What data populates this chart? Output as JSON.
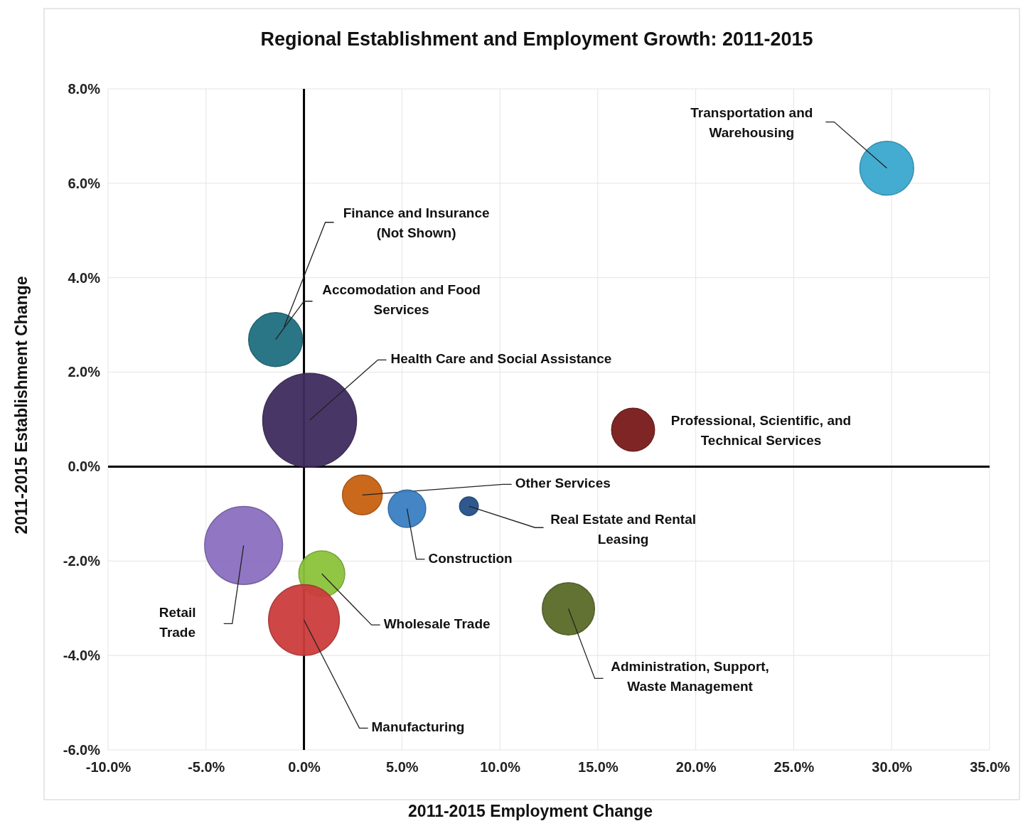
{
  "chart_data": {
    "type": "bubble",
    "title": "Regional Establishment and Employment Growth:  2011-2015",
    "xlabel": "2011-2015 Employment Change",
    "ylabel": "2011-2015 Establishment Change",
    "xlim": [
      -10,
      35
    ],
    "xticks": [
      {
        "value": -10,
        "label": "-10.0%"
      },
      {
        "value": -5,
        "label": "-5.0%"
      },
      {
        "value": 0,
        "label": "0.0%"
      },
      {
        "value": 5,
        "label": "5.0%"
      },
      {
        "value": 10,
        "label": "10.0%"
      },
      {
        "value": 15,
        "label": "15.0%"
      },
      {
        "value": 20,
        "label": "20.0%"
      },
      {
        "value": 25,
        "label": "25.0%"
      },
      {
        "value": 30,
        "label": "30.0%"
      },
      {
        "value": 35,
        "label": "35.0%"
      }
    ],
    "ylim": [
      -6,
      8
    ],
    "yticks": [
      {
        "value": -6,
        "label": "-6.0%"
      },
      {
        "value": -4,
        "label": "-4.0%"
      },
      {
        "value": -2,
        "label": "-2.0%"
      },
      {
        "value": 0,
        "label": "0.0%"
      },
      {
        "value": 2,
        "label": "2.0%"
      },
      {
        "value": 4,
        "label": "4.0%"
      },
      {
        "value": 6,
        "label": "6.0%"
      },
      {
        "value": 8,
        "label": "8.0%"
      }
    ],
    "grid": true,
    "annotations": [
      "Finance and Insurance (Not Shown)"
    ],
    "series": [
      {
        "name": "Transportation and Warehousing",
        "color": "#3aa8cf",
        "x": [
          29.75
        ],
        "values": [
          6.32
        ],
        "sizes": [
          0.33
        ]
      },
      {
        "name": "Accomodation and Food Services",
        "color": "#1f6f80",
        "x": [
          -1.45
        ],
        "values": [
          2.69
        ],
        "sizes": [
          0.33
        ]
      },
      {
        "name": "Health Care and Social Assistance",
        "color": "#3f2d5e",
        "x": [
          0.29
        ],
        "values": [
          0.98
        ],
        "sizes": [
          1
        ]
      },
      {
        "name": "Professional, Scientific, and Technical Services",
        "color": "#7a1a1a",
        "x": [
          16.8
        ],
        "values": [
          0.78
        ],
        "sizes": [
          0.21
        ]
      },
      {
        "name": "Other Services",
        "color": "#c8610f",
        "x": [
          2.98
        ],
        "values": [
          -0.6
        ],
        "sizes": [
          0.18
        ]
      },
      {
        "name": "Construction",
        "color": "#3a7fc4",
        "x": [
          5.26
        ],
        "values": [
          -0.89
        ],
        "sizes": [
          0.16
        ]
      },
      {
        "name": "Real Estate and Rental Leasing",
        "color": "#24508a",
        "x": [
          8.42
        ],
        "values": [
          -0.84
        ],
        "sizes": [
          0.04
        ]
      },
      {
        "name": "Retail Trade",
        "color": "#8b6fc0",
        "x": [
          -3.08
        ],
        "values": [
          -1.67
        ],
        "sizes": [
          0.69
        ]
      },
      {
        "name": "Wholesale Trade",
        "color": "#8cc43c",
        "x": [
          0.91
        ],
        "values": [
          -2.27
        ],
        "sizes": [
          0.24
        ]
      },
      {
        "name": "Manufacturing",
        "color": "#cc3d3d",
        "x": [
          0
        ],
        "values": [
          -3.25
        ],
        "sizes": [
          0.57
        ]
      },
      {
        "name": "Administration, Support, Waste Management",
        "color": "#5a6b28",
        "x": [
          13.5
        ],
        "values": [
          -3.01
        ],
        "sizes": [
          0.31
        ]
      }
    ]
  }
}
